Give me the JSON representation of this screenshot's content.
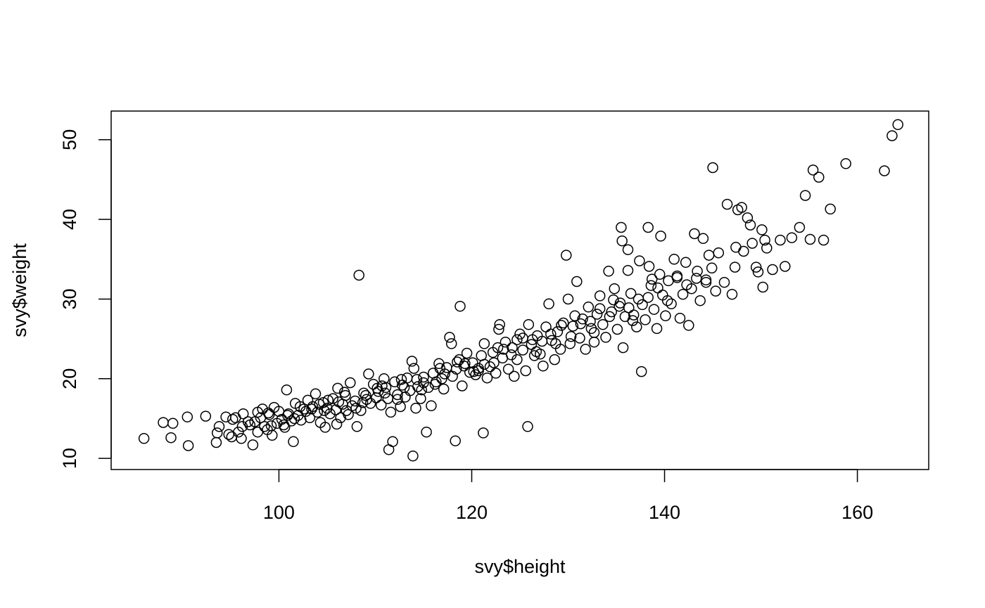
{
  "chart_data": {
    "type": "scatter",
    "title": "",
    "xlabel": "svy$height",
    "ylabel": "svy$weight",
    "xlim": [
      82.6,
      167.4
    ],
    "ylim": [
      8.6,
      53.6
    ],
    "xticks": [
      100,
      120,
      140,
      160
    ],
    "yticks": [
      10,
      20,
      30,
      40,
      50
    ],
    "grid": false,
    "legend": "none",
    "marker": "open-circle",
    "colors": {
      "marker": "#000000",
      "frame": "#000000",
      "background": "#ffffff"
    },
    "points": [
      [
        86.0,
        12.5
      ],
      [
        88.0,
        14.5
      ],
      [
        88.8,
        12.6
      ],
      [
        89.0,
        14.4
      ],
      [
        90.5,
        15.2
      ],
      [
        90.6,
        11.6
      ],
      [
        92.4,
        15.3
      ],
      [
        93.5,
        12.0
      ],
      [
        93.6,
        13.2
      ],
      [
        93.8,
        14.0
      ],
      [
        94.5,
        15.2
      ],
      [
        94.8,
        13.0
      ],
      [
        95.1,
        12.7
      ],
      [
        95.2,
        14.9
      ],
      [
        95.5,
        15.1
      ],
      [
        95.8,
        13.3
      ],
      [
        96.1,
        12.5
      ],
      [
        96.2,
        14.0
      ],
      [
        96.3,
        15.6
      ],
      [
        97.0,
        14.2
      ],
      [
        97.3,
        11.7
      ],
      [
        97.5,
        14.6
      ],
      [
        97.8,
        13.3
      ],
      [
        98.1,
        15.1
      ],
      [
        98.3,
        16.2
      ],
      [
        98.5,
        14.0
      ],
      [
        98.8,
        13.6
      ],
      [
        99.0,
        15.5
      ],
      [
        99.3,
        12.9
      ],
      [
        99.5,
        16.4
      ],
      [
        99.8,
        14.4
      ],
      [
        100.0,
        15.9
      ],
      [
        100.3,
        14.9
      ],
      [
        100.6,
        13.9
      ],
      [
        100.8,
        18.6
      ],
      [
        101.0,
        15.6
      ],
      [
        101.3,
        14.7
      ],
      [
        101.5,
        12.1
      ],
      [
        101.7,
        16.9
      ],
      [
        102.0,
        15.4
      ],
      [
        102.3,
        14.8
      ],
      [
        102.6,
        16.2
      ],
      [
        103.0,
        17.3
      ],
      [
        103.2,
        15.1
      ],
      [
        103.5,
        16.5
      ],
      [
        103.8,
        18.1
      ],
      [
        104.0,
        15.8
      ],
      [
        104.3,
        14.5
      ],
      [
        104.6,
        17.0
      ],
      [
        104.8,
        13.9
      ],
      [
        105.0,
        16.3
      ],
      [
        105.3,
        15.6
      ],
      [
        105.6,
        17.5
      ],
      [
        105.9,
        16.1
      ],
      [
        106.0,
        14.3
      ],
      [
        106.1,
        18.8
      ],
      [
        106.4,
        15.1
      ],
      [
        106.6,
        16.8
      ],
      [
        106.9,
        17.9
      ],
      [
        107.2,
        15.5
      ],
      [
        107.4,
        19.5
      ],
      [
        107.6,
        16.6
      ],
      [
        107.9,
        17.2
      ],
      [
        108.1,
        14.0
      ],
      [
        108.3,
        33.0
      ],
      [
        108.5,
        16.0
      ],
      [
        108.8,
        18.2
      ],
      [
        109.1,
        17.4
      ],
      [
        109.3,
        20.6
      ],
      [
        109.5,
        16.9
      ],
      [
        109.8,
        19.3
      ],
      [
        110.1,
        17.6
      ],
      [
        110.3,
        18.4
      ],
      [
        110.6,
        16.7
      ],
      [
        110.9,
        20.0
      ],
      [
        111.1,
        18.9
      ],
      [
        111.3,
        17.5
      ],
      [
        111.4,
        11.1
      ],
      [
        111.6,
        15.8
      ],
      [
        111.8,
        12.1
      ],
      [
        112.0,
        19.6
      ],
      [
        112.3,
        18.0
      ],
      [
        112.6,
        16.5
      ],
      [
        112.8,
        19.2
      ],
      [
        113.1,
        17.7
      ],
      [
        113.3,
        20.1
      ],
      [
        113.6,
        18.5
      ],
      [
        113.8,
        22.2
      ],
      [
        113.9,
        10.3
      ],
      [
        114.0,
        21.3
      ],
      [
        114.2,
        16.3
      ],
      [
        114.4,
        19.0
      ],
      [
        114.7,
        17.5
      ],
      [
        115.0,
        20.2
      ],
      [
        115.3,
        13.3
      ],
      [
        115.5,
        18.9
      ],
      [
        115.8,
        16.6
      ],
      [
        116.0,
        20.7
      ],
      [
        116.3,
        19.6
      ],
      [
        116.6,
        21.9
      ],
      [
        116.9,
        20.0
      ],
      [
        117.1,
        18.7
      ],
      [
        117.4,
        21.4
      ],
      [
        117.7,
        25.2
      ],
      [
        117.9,
        24.4
      ],
      [
        118.0,
        20.3
      ],
      [
        118.3,
        12.2
      ],
      [
        118.5,
        22.1
      ],
      [
        118.8,
        29.1
      ],
      [
        119.0,
        19.1
      ],
      [
        119.2,
        21.6
      ],
      [
        119.5,
        23.2
      ],
      [
        119.8,
        20.8
      ],
      [
        120.1,
        22.0
      ],
      [
        120.4,
        20.5
      ],
      [
        120.7,
        21.3
      ],
      [
        121.0,
        22.9
      ],
      [
        121.2,
        13.2
      ],
      [
        121.3,
        24.4
      ],
      [
        121.6,
        20.1
      ],
      [
        121.9,
        21.5
      ],
      [
        122.2,
        23.3
      ],
      [
        122.5,
        20.7
      ],
      [
        122.8,
        26.2
      ],
      [
        122.9,
        26.8
      ],
      [
        123.2,
        22.6
      ],
      [
        123.5,
        24.6
      ],
      [
        123.8,
        21.2
      ],
      [
        124.1,
        23.0
      ],
      [
        124.4,
        20.3
      ],
      [
        124.7,
        22.4
      ],
      [
        125.0,
        25.6
      ],
      [
        125.3,
        23.6
      ],
      [
        125.6,
        21.0
      ],
      [
        125.8,
        14.0
      ],
      [
        125.9,
        26.8
      ],
      [
        126.2,
        24.3
      ],
      [
        126.5,
        22.9
      ],
      [
        126.8,
        25.4
      ],
      [
        127.1,
        23.1
      ],
      [
        127.4,
        21.6
      ],
      [
        127.7,
        26.5
      ],
      [
        128.0,
        29.4
      ],
      [
        128.3,
        24.8
      ],
      [
        128.6,
        22.4
      ],
      [
        128.9,
        25.9
      ],
      [
        129.2,
        23.7
      ],
      [
        129.5,
        27.0
      ],
      [
        129.8,
        35.5
      ],
      [
        130.0,
        30.0
      ],
      [
        130.2,
        24.4
      ],
      [
        130.5,
        26.6
      ],
      [
        130.9,
        32.2
      ],
      [
        131.2,
        25.1
      ],
      [
        131.5,
        27.5
      ],
      [
        131.8,
        23.7
      ],
      [
        132.1,
        29.0
      ],
      [
        132.4,
        26.3
      ],
      [
        132.7,
        24.6
      ],
      [
        133.0,
        28.1
      ],
      [
        133.3,
        30.4
      ],
      [
        133.6,
        26.8
      ],
      [
        133.9,
        25.2
      ],
      [
        134.2,
        33.5
      ],
      [
        134.5,
        28.4
      ],
      [
        134.8,
        31.3
      ],
      [
        135.1,
        26.2
      ],
      [
        135.4,
        29.5
      ],
      [
        135.5,
        39.0
      ],
      [
        135.6,
        37.3
      ],
      [
        135.7,
        23.9
      ],
      [
        135.9,
        27.8
      ],
      [
        136.2,
        33.6
      ],
      [
        136.2,
        36.2
      ],
      [
        136.5,
        30.7
      ],
      [
        136.8,
        28.0
      ],
      [
        137.1,
        26.5
      ],
      [
        137.4,
        34.8
      ],
      [
        137.7,
        29.3
      ],
      [
        137.6,
        20.9
      ],
      [
        138.0,
        27.4
      ],
      [
        138.3,
        39.0
      ],
      [
        138.4,
        34.1
      ],
      [
        138.6,
        31.7
      ],
      [
        138.9,
        28.7
      ],
      [
        139.2,
        26.3
      ],
      [
        139.5,
        33.1
      ],
      [
        139.6,
        37.9
      ],
      [
        139.8,
        30.5
      ],
      [
        140.1,
        27.9
      ],
      [
        140.4,
        32.3
      ],
      [
        140.7,
        29.4
      ],
      [
        141.0,
        35.0
      ],
      [
        141.3,
        32.7
      ],
      [
        141.6,
        27.6
      ],
      [
        141.9,
        30.6
      ],
      [
        142.2,
        34.6
      ],
      [
        142.5,
        26.7
      ],
      [
        142.8,
        31.3
      ],
      [
        143.1,
        38.2
      ],
      [
        143.4,
        33.5
      ],
      [
        143.7,
        29.8
      ],
      [
        144.0,
        37.6
      ],
      [
        144.3,
        32.1
      ],
      [
        144.6,
        35.5
      ],
      [
        144.9,
        33.9
      ],
      [
        145.0,
        46.5
      ],
      [
        145.3,
        31.0
      ],
      [
        145.6,
        35.8
      ],
      [
        146.2,
        32.1
      ],
      [
        146.5,
        41.9
      ],
      [
        147.0,
        30.6
      ],
      [
        147.3,
        34.0
      ],
      [
        147.4,
        36.5
      ],
      [
        147.6,
        41.2
      ],
      [
        148.0,
        41.5
      ],
      [
        148.2,
        36.0
      ],
      [
        148.6,
        40.2
      ],
      [
        148.9,
        39.3
      ],
      [
        149.1,
        37.0
      ],
      [
        149.5,
        34.0
      ],
      [
        149.7,
        33.4
      ],
      [
        150.1,
        38.7
      ],
      [
        150.2,
        31.5
      ],
      [
        150.4,
        37.4
      ],
      [
        150.6,
        36.4
      ],
      [
        151.2,
        33.7
      ],
      [
        152.0,
        37.4
      ],
      [
        152.5,
        34.1
      ],
      [
        153.2,
        37.7
      ],
      [
        154.0,
        39.0
      ],
      [
        154.6,
        43.0
      ],
      [
        155.1,
        37.5
      ],
      [
        155.4,
        46.2
      ],
      [
        156.0,
        45.3
      ],
      [
        156.5,
        37.4
      ],
      [
        157.2,
        41.3
      ],
      [
        158.8,
        47.0
      ],
      [
        162.8,
        46.1
      ],
      [
        163.6,
        50.5
      ],
      [
        164.2,
        51.9
      ],
      [
        97.8,
        15.8
      ],
      [
        100.5,
        14.2
      ],
      [
        102.8,
        15.9
      ],
      [
        104.2,
        16.8
      ],
      [
        106.2,
        17.1
      ],
      [
        108.0,
        16.3
      ],
      [
        110.2,
        18.8
      ],
      [
        112.3,
        17.4
      ],
      [
        114.3,
        19.9
      ],
      [
        116.2,
        19.3
      ],
      [
        118.4,
        21.2
      ],
      [
        120.2,
        20.9
      ],
      [
        122.3,
        22.0
      ],
      [
        124.2,
        23.9
      ],
      [
        126.3,
        24.9
      ],
      [
        128.2,
        25.6
      ],
      [
        130.3,
        25.3
      ],
      [
        132.3,
        27.2
      ],
      [
        134.3,
        27.8
      ],
      [
        136.3,
        28.9
      ],
      [
        138.3,
        30.2
      ],
      [
        140.3,
        29.8
      ],
      [
        142.3,
        31.8
      ],
      [
        144.3,
        32.4
      ],
      [
        99.2,
        14.1
      ],
      [
        101.6,
        15.0
      ],
      [
        103.4,
        16.2
      ],
      [
        105.1,
        17.3
      ],
      [
        107.0,
        16.0
      ],
      [
        109.0,
        17.9
      ],
      [
        111.0,
        18.2
      ],
      [
        113.0,
        18.9
      ],
      [
        115.0,
        19.5
      ],
      [
        117.2,
        20.6
      ],
      [
        119.3,
        21.9
      ],
      [
        121.3,
        21.8
      ],
      [
        123.3,
        23.7
      ],
      [
        125.3,
        25.1
      ],
      [
        127.3,
        24.7
      ],
      [
        129.3,
        26.7
      ],
      [
        131.3,
        26.9
      ],
      [
        133.3,
        28.8
      ],
      [
        135.3,
        29.1
      ],
      [
        137.3,
        30.0
      ],
      [
        139.3,
        31.4
      ],
      [
        141.3,
        32.9
      ],
      [
        143.3,
        32.6
      ],
      [
        96.8,
        14.6
      ],
      [
        98.9,
        15.7
      ],
      [
        100.9,
        15.4
      ],
      [
        102.2,
        16.5
      ],
      [
        104.7,
        16.0
      ],
      [
        106.8,
        18.3
      ],
      [
        108.7,
        17.0
      ],
      [
        110.7,
        19.1
      ],
      [
        112.7,
        19.9
      ],
      [
        114.8,
        18.6
      ],
      [
        116.7,
        21.3
      ],
      [
        118.7,
        22.4
      ],
      [
        120.7,
        21.0
      ],
      [
        122.7,
        23.9
      ],
      [
        124.7,
        24.9
      ],
      [
        126.7,
        23.4
      ],
      [
        128.7,
        24.4
      ],
      [
        130.7,
        27.9
      ],
      [
        132.7,
        25.8
      ],
      [
        134.7,
        29.9
      ],
      [
        136.7,
        27.3
      ],
      [
        138.7,
        32.5
      ]
    ]
  }
}
